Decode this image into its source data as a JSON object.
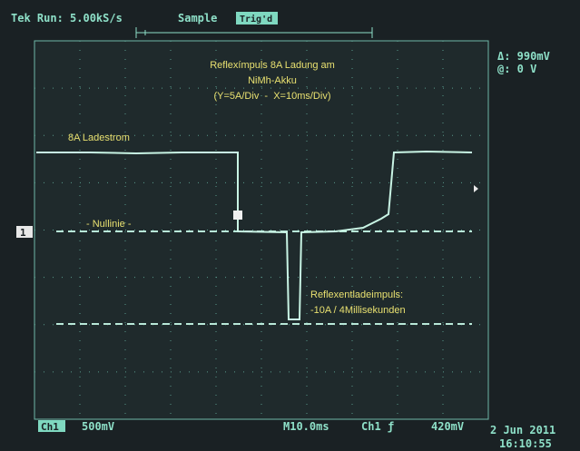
{
  "header": {
    "status": "Tek Run: 5.00kS/s",
    "mode": "Sample",
    "trigger_state": "Trig'd"
  },
  "cursor": {
    "delta": "Δ: 990mV",
    "at": "@: 0 V"
  },
  "annotations": {
    "title": [
      "Reflexímpuls 8A Ladung am",
      "NiMh-Akku",
      "(Y=5A/Div  -  X=10ms/Div)"
    ],
    "charge_label": "8A Ladestrom",
    "zero_label": "- Nullinie -",
    "pulse_label": [
      "Reflexentladeimpuls:",
      "-10A / 4Millisekunden"
    ]
  },
  "channel_marker": "1",
  "footer": {
    "channel": "Ch1",
    "scale": "500mV",
    "timebase": "M10.0ms",
    "trigger_source": "Ch1 ƒ",
    "trigger_level": "420mV",
    "date": "2 Jun 2011",
    "time": "16:10:55"
  }
}
